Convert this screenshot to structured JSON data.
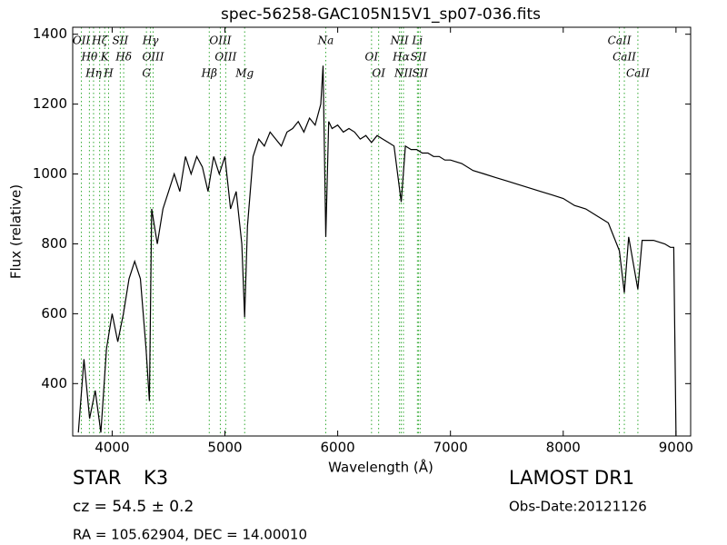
{
  "chart_data": {
    "type": "line",
    "title": "spec-56258-GAC105N15V1_sp07-036.fits",
    "x_label": "Wavelength (Å)",
    "y_label": "Flux (relative)",
    "xlim": [
      3650,
      9130
    ],
    "ylim": [
      250,
      1420
    ],
    "xticks": [
      4000,
      5000,
      6000,
      7000,
      8000,
      9000
    ],
    "yticks": [
      400,
      600,
      800,
      1000,
      1200,
      1400
    ],
    "color": "#000000",
    "line_color": "#33aa33",
    "x": [
      3700,
      3750,
      3800,
      3850,
      3900,
      3950,
      4000,
      4050,
      4100,
      4150,
      4200,
      4250,
      4300,
      4330,
      4350,
      4400,
      4450,
      4500,
      4550,
      4600,
      4650,
      4700,
      4750,
      4800,
      4850,
      4900,
      4950,
      5000,
      5050,
      5100,
      5150,
      5175,
      5200,
      5250,
      5300,
      5350,
      5400,
      5450,
      5500,
      5550,
      5600,
      5650,
      5700,
      5750,
      5800,
      5850,
      5870,
      5894,
      5920,
      5950,
      6000,
      6050,
      6100,
      6150,
      6200,
      6250,
      6300,
      6350,
      6400,
      6450,
      6500,
      6563,
      6600,
      6650,
      6700,
      6750,
      6800,
      6850,
      6900,
      6950,
      7000,
      7100,
      7200,
      7300,
      7400,
      7500,
      7600,
      7700,
      7800,
      7900,
      8000,
      8100,
      8200,
      8300,
      8400,
      8498,
      8542,
      8580,
      8662,
      8700,
      8800,
      8900,
      8950,
      8980,
      9000
    ],
    "values": [
      260,
      470,
      300,
      380,
      260,
      500,
      600,
      520,
      600,
      700,
      750,
      700,
      500,
      350,
      900,
      800,
      900,
      950,
      1000,
      950,
      1050,
      1000,
      1050,
      1020,
      950,
      1050,
      1000,
      1050,
      900,
      950,
      800,
      590,
      850,
      1050,
      1100,
      1080,
      1120,
      1100,
      1080,
      1120,
      1130,
      1150,
      1120,
      1160,
      1140,
      1200,
      1310,
      820,
      1150,
      1130,
      1140,
      1120,
      1130,
      1120,
      1100,
      1110,
      1090,
      1110,
      1100,
      1090,
      1080,
      920,
      1080,
      1070,
      1070,
      1060,
      1060,
      1050,
      1050,
      1040,
      1040,
      1030,
      1010,
      1000,
      990,
      980,
      970,
      960,
      950,
      940,
      930,
      910,
      900,
      880,
      860,
      780,
      660,
      820,
      670,
      810,
      810,
      800,
      790,
      790,
      250
    ],
    "lines": [
      {
        "name": "OII",
        "wavelength": 3727
      },
      {
        "name": "Hθ",
        "wavelength": 3798
      },
      {
        "name": "Hη",
        "wavelength": 3835
      },
      {
        "name": "Hζ",
        "wavelength": 3889
      },
      {
        "name": "K",
        "wavelength": 3934
      },
      {
        "name": "H",
        "wavelength": 3968
      },
      {
        "name": "SII",
        "wavelength": 4072
      },
      {
        "name": "Hδ",
        "wavelength": 4102
      },
      {
        "name": "G",
        "wavelength": 4304
      },
      {
        "name": "Hγ",
        "wavelength": 4340
      },
      {
        "name": "OIII",
        "wavelength": 4363
      },
      {
        "name": "Hβ",
        "wavelength": 4861
      },
      {
        "name": "OIII",
        "wavelength": 4959
      },
      {
        "name": "OIII",
        "wavelength": 5007
      },
      {
        "name": "Mg",
        "wavelength": 5175
      },
      {
        "name": "Na",
        "wavelength": 5894
      },
      {
        "name": "OI",
        "wavelength": 6300
      },
      {
        "name": "OI",
        "wavelength": 6363
      },
      {
        "name": "NII",
        "wavelength": 6548
      },
      {
        "name": "Hα",
        "wavelength": 6563
      },
      {
        "name": "NII",
        "wavelength": 6583
      },
      {
        "name": "Li",
        "wavelength": 6707
      },
      {
        "name": "SII",
        "wavelength": 6716
      },
      {
        "name": "SII",
        "wavelength": 6731
      },
      {
        "name": "CaII",
        "wavelength": 8498
      },
      {
        "name": "CaII",
        "wavelength": 8542
      },
      {
        "name": "CaII",
        "wavelength": 8662
      }
    ],
    "object_class": "STAR",
    "subclass": "K3",
    "redshift": "cz = 54.5 ± 0.2",
    "coordinates": "RA = 105.62904, DEC = 14.00010",
    "survey": "LAMOST DR1",
    "obs_date": "Obs-Date:20121126"
  }
}
